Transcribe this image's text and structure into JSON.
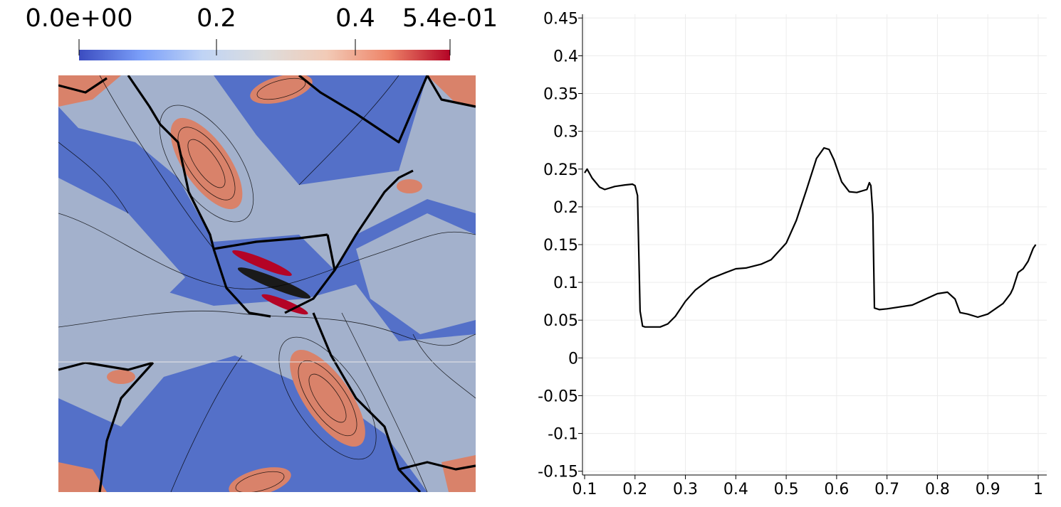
{
  "colorbar": {
    "tick_labels": [
      "0.0e+00",
      "0.2",
      "0.4",
      "5.4e-01"
    ],
    "tick_values": [
      0.0,
      0.2,
      0.4,
      0.54
    ],
    "range": [
      0.0,
      0.54
    ],
    "colormap": [
      "#3b4cc0",
      "#7b9ff9",
      "#c0d4f5",
      "#dddddd",
      "#f2cbb7",
      "#ee8468",
      "#b40426"
    ]
  },
  "field_colors": {
    "low": "#5470c8",
    "mid": "#a3b1cc",
    "high": "#d9826a",
    "peak": "#b40426"
  },
  "chart_data": {
    "type": "line",
    "x": [
      0.1,
      0.105,
      0.115,
      0.13,
      0.14,
      0.16,
      0.18,
      0.195,
      0.2,
      0.205,
      0.21,
      0.215,
      0.22,
      0.23,
      0.25,
      0.265,
      0.28,
      0.3,
      0.32,
      0.35,
      0.38,
      0.4,
      0.42,
      0.45,
      0.47,
      0.5,
      0.52,
      0.54,
      0.56,
      0.575,
      0.585,
      0.595,
      0.61,
      0.625,
      0.64,
      0.66,
      0.665,
      0.668,
      0.672,
      0.675,
      0.685,
      0.7,
      0.75,
      0.77,
      0.8,
      0.82,
      0.835,
      0.845,
      0.86,
      0.88,
      0.9,
      0.93,
      0.945,
      0.95,
      0.96,
      0.97,
      0.98,
      0.99,
      0.995
    ],
    "y": [
      0.245,
      0.25,
      0.238,
      0.226,
      0.223,
      0.227,
      0.229,
      0.23,
      0.228,
      0.215,
      0.062,
      0.042,
      0.041,
      0.041,
      0.041,
      0.045,
      0.055,
      0.075,
      0.09,
      0.105,
      0.113,
      0.118,
      0.119,
      0.124,
      0.13,
      0.152,
      0.182,
      0.222,
      0.264,
      0.278,
      0.276,
      0.262,
      0.233,
      0.22,
      0.219,
      0.223,
      0.232,
      0.228,
      0.19,
      0.066,
      0.064,
      0.065,
      0.07,
      0.076,
      0.085,
      0.087,
      0.078,
      0.06,
      0.058,
      0.054,
      0.058,
      0.072,
      0.085,
      0.092,
      0.113,
      0.118,
      0.128,
      0.145,
      0.15
    ],
    "xlim": [
      0.1,
      1.0
    ],
    "ylim": [
      -0.155,
      0.455
    ],
    "xticks": [
      "0.1",
      "0.2",
      "0.3",
      "0.4",
      "0.5",
      "0.6",
      "0.7",
      "0.8",
      "0.9",
      "1"
    ],
    "xtick_values": [
      0.1,
      0.2,
      0.3,
      0.4,
      0.5,
      0.6,
      0.7,
      0.8,
      0.9,
      1.0
    ],
    "yticks": [
      "0.45",
      "0.4",
      "0.35",
      "0.3",
      "0.25",
      "0.2",
      "0.15",
      "0.1",
      "0.05",
      "0",
      "-0.05",
      "-0.1",
      "-0.15"
    ],
    "ytick_values": [
      0.45,
      0.4,
      0.35,
      0.3,
      0.25,
      0.2,
      0.15,
      0.1,
      0.05,
      0.0,
      -0.05,
      -0.1,
      -0.15
    ],
    "grid": true,
    "line_color": "#000000"
  }
}
